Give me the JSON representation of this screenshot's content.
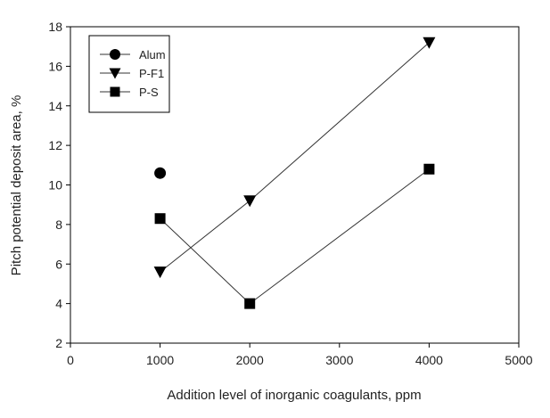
{
  "chart_data": {
    "type": "scatter",
    "title": "",
    "xlabel": "Addition level of inorganic coagulants, ppm",
    "ylabel": "Pitch potential deposit area, %",
    "xlim": [
      0,
      5000
    ],
    "ylim": [
      2,
      18
    ],
    "xticks": [
      "0",
      "1000",
      "2000",
      "3000",
      "4000",
      "5000"
    ],
    "yticks": [
      "2",
      "4",
      "6",
      "8",
      "10",
      "12",
      "14",
      "16",
      "18"
    ],
    "grid": false,
    "legend_position": "top-left",
    "series": [
      {
        "name": "Alum",
        "marker": "circle",
        "connected": false,
        "x": [
          1000
        ],
        "y": [
          10.6
        ]
      },
      {
        "name": "P-F1",
        "marker": "triangle-down",
        "connected": true,
        "x": [
          1000,
          2000,
          4000
        ],
        "y": [
          5.6,
          9.2,
          17.2
        ]
      },
      {
        "name": "P-S",
        "marker": "square",
        "connected": true,
        "x": [
          1000,
          2000,
          4000
        ],
        "y": [
          8.3,
          4.0,
          10.8
        ]
      }
    ],
    "colors": {
      "marker": "#000000",
      "line": "#333333",
      "axis": "#000000"
    }
  }
}
